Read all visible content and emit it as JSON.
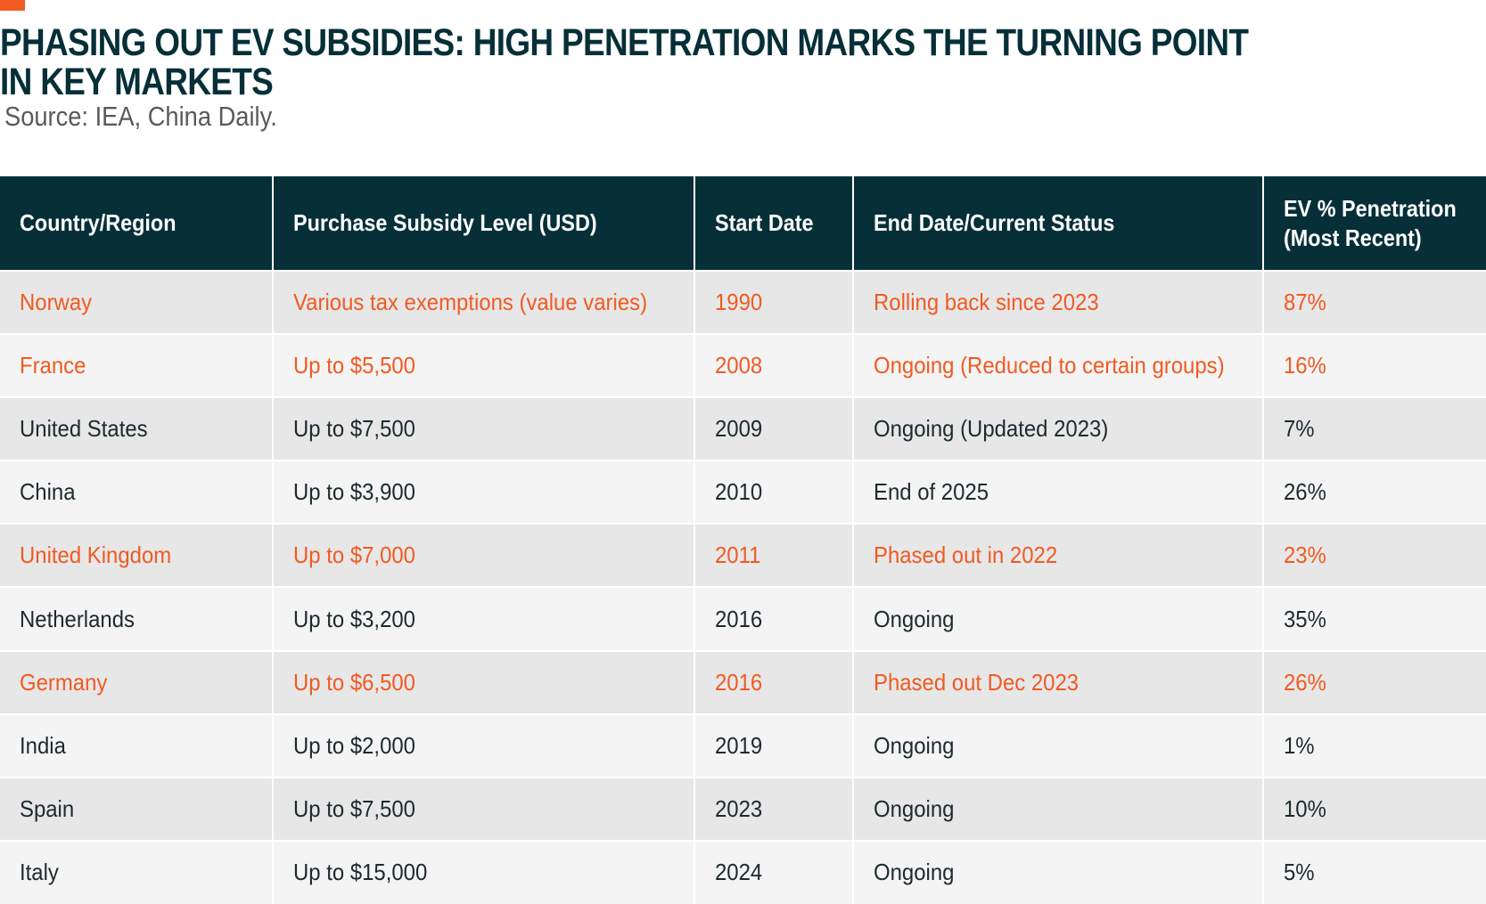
{
  "title_lines": [
    "PHASING OUT EV SUBSIDIES: HIGH PENETRATION MARKS THE TURNING POINT",
    "IN KEY MARKETS"
  ],
  "source": "Source: IEA, China Daily.",
  "colors": {
    "header_bg": "#062f38",
    "highlight_text": "#f15a22",
    "row_odd": "#e7e7e7",
    "row_even": "#f4f4f4"
  },
  "chart_data": {
    "type": "table",
    "columns": [
      "Country/Region",
      "Purchase Subsidy Level (USD)",
      "Start Date",
      "End Date/Current Status",
      "EV % Penetration (Most Recent)"
    ],
    "rows": [
      {
        "cells": [
          "Norway",
          "Various tax exemptions (value varies)",
          "1990",
          "Rolling back since 2023",
          "87%"
        ],
        "highlight": true
      },
      {
        "cells": [
          "France",
          "Up to $5,500",
          "2008",
          "Ongoing (Reduced to certain groups)",
          "16%"
        ],
        "highlight": true
      },
      {
        "cells": [
          "United States",
          "Up to $7,500",
          "2009",
          "Ongoing (Updated 2023)",
          "7%"
        ],
        "highlight": false
      },
      {
        "cells": [
          "China",
          "Up to $3,900",
          "2010",
          "End of 2025",
          "26%"
        ],
        "highlight": false
      },
      {
        "cells": [
          "United Kingdom",
          "Up to $7,000",
          "2011",
          "Phased out in 2022",
          "23%"
        ],
        "highlight": true
      },
      {
        "cells": [
          "Netherlands",
          "Up to $3,200",
          "2016",
          "Ongoing",
          "35%"
        ],
        "highlight": false
      },
      {
        "cells": [
          "Germany",
          "Up to $6,500",
          "2016",
          "Phased out Dec 2023",
          "26%"
        ],
        "highlight": true
      },
      {
        "cells": [
          "India",
          "Up to $2,000",
          "2019",
          "Ongoing",
          "1%"
        ],
        "highlight": false
      },
      {
        "cells": [
          "Spain",
          "Up to $7,500",
          "2023",
          "Ongoing",
          "10%"
        ],
        "highlight": false
      },
      {
        "cells": [
          "Italy",
          "Up to $15,000",
          "2024",
          "Ongoing",
          "5%"
        ],
        "highlight": false
      }
    ]
  }
}
